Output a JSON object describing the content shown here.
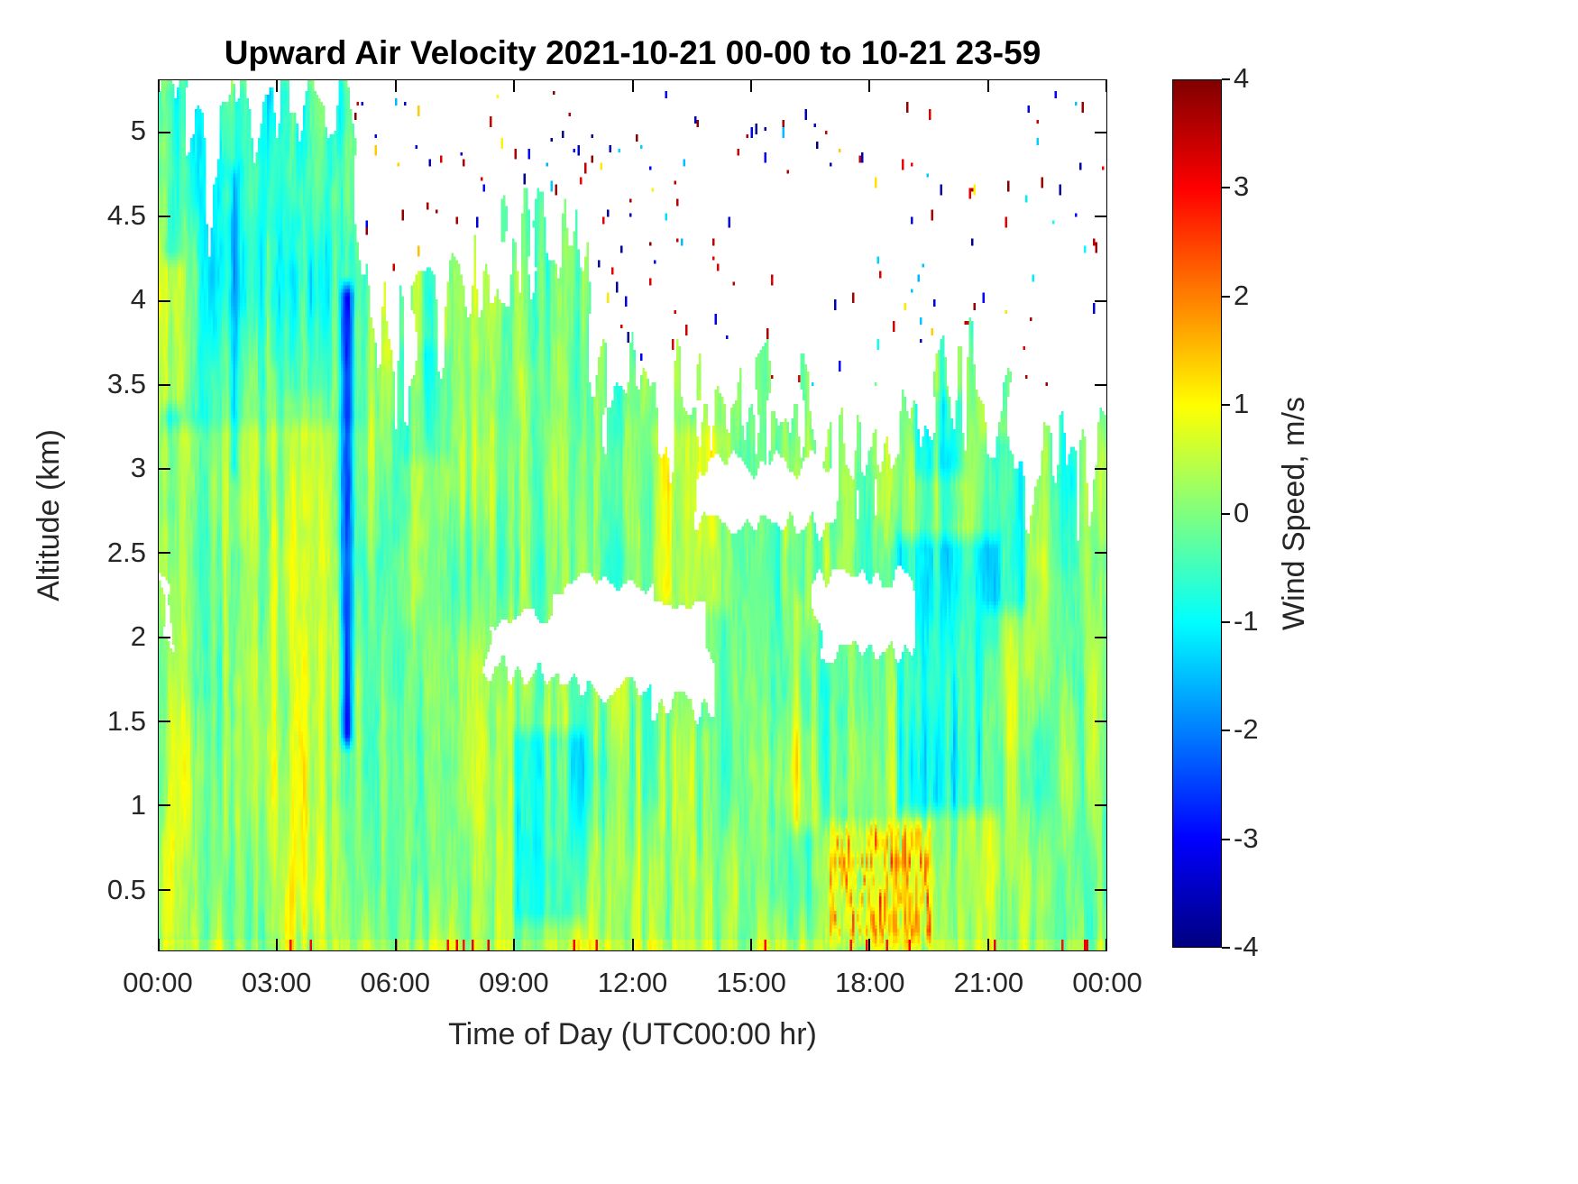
{
  "chart_data": {
    "type": "heatmap",
    "title": "Upward Air Velocity 2021-10-21 00-00 to 10-21 23-59",
    "xlabel": "Time of Day (UTC00:00 hr)",
    "ylabel": "Altitude (km)",
    "colorbar_label": "Wind Speed, m/s",
    "x_range_hours": [
      0,
      24
    ],
    "x_tick_hours": [
      0,
      3,
      6,
      9,
      12,
      15,
      18,
      21,
      24
    ],
    "x_tick_labels": [
      "00:00",
      "03:00",
      "06:00",
      "09:00",
      "12:00",
      "15:00",
      "18:00",
      "21:00",
      "00:00"
    ],
    "y_range_km": [
      0.14,
      5.31
    ],
    "y_tick_km": [
      0.5,
      1,
      1.5,
      2,
      2.5,
      3,
      3.5,
      4,
      4.5,
      5
    ],
    "y_tick_labels": [
      "0.5",
      "1",
      "1.5",
      "2",
      "2.5",
      "3",
      "3.5",
      "4",
      "4.5",
      "5"
    ],
    "value_range": [
      -4,
      4
    ],
    "colorbar_tick_values": [
      4,
      3,
      2,
      1,
      0,
      -1,
      -2,
      -3,
      -4
    ],
    "colorbar_tick_labels": [
      "4",
      "3",
      "2",
      "1",
      "0",
      "-1",
      "-2",
      "-3",
      "-4"
    ],
    "colormap": "jet",
    "colormap_stops": [
      [
        -4,
        0,
        0,
        128
      ],
      [
        -3,
        0,
        0,
        255
      ],
      [
        -1,
        0,
        255,
        255
      ],
      [
        1,
        255,
        255,
        0
      ],
      [
        3,
        255,
        0,
        0
      ],
      [
        4,
        128,
        0,
        0
      ]
    ],
    "no_data_color": "#ffffff",
    "field_summary": "Time-height curtain of vertical wind speed. Mostly weak velocities (-1 to +1 m/s, green/teal) below a ragged echo top that falls from ~5.3 km before 05:00 to ~3 km after noon; white = no data, including a mid-level gap near 2 km from ~08:30-14:00 and ~16:30-19:00; narrow deep-blue downdraft streak near 04:45; orange/red updraft bursts below 1 km near 17:00-19:30; isolated extreme-value speckles above the echo top.",
    "noise": {
      "seed": 7,
      "streak": {
        "fx": 6.5,
        "fz": 0.75,
        "amp": 1.35
      },
      "blob": {
        "fx": 1.3,
        "fz": 1.7,
        "amp": 0.7
      },
      "fine": {
        "fx": 34,
        "fz": 6.5,
        "amp": 0.5
      },
      "mean_offset": 0.13,
      "z_gradient": -0.05
    },
    "mask": {
      "cloud_top_profile": [
        [
          0,
          5.3
        ],
        [
          0.7,
          5.35
        ],
        [
          1.2,
          4.6
        ],
        [
          1.7,
          5.1
        ],
        [
          2.6,
          5.25
        ],
        [
          3.4,
          5.0
        ],
        [
          3.9,
          5.3
        ],
        [
          4.8,
          5.35
        ],
        [
          5.2,
          4.2
        ],
        [
          5.6,
          3.8
        ],
        [
          6.5,
          3.7
        ],
        [
          7.5,
          4.0
        ],
        [
          8.3,
          4.1
        ],
        [
          9.0,
          4.3
        ],
        [
          9.7,
          4.6
        ],
        [
          10.3,
          4.2
        ],
        [
          10.8,
          3.9
        ],
        [
          11.3,
          3.5
        ],
        [
          12.0,
          3.4
        ],
        [
          12.6,
          3.2
        ],
        [
          13.2,
          3.5
        ],
        [
          14.2,
          3.45
        ],
        [
          14.8,
          3.3
        ],
        [
          15.5,
          3.25
        ],
        [
          16.5,
          3.2
        ],
        [
          17.3,
          3.15
        ],
        [
          18.2,
          3.1
        ],
        [
          19.0,
          3.35
        ],
        [
          19.8,
          3.4
        ],
        [
          20.5,
          3.5
        ],
        [
          21.2,
          3.3
        ],
        [
          21.8,
          3.1
        ],
        [
          22.4,
          3.0
        ],
        [
          23.0,
          3.15
        ],
        [
          23.6,
          3.0
        ],
        [
          24,
          3.2
        ]
      ],
      "edge_raggedness_km": 0.55,
      "holes": [
        {
          "t0": 8.3,
          "t1": 10.4,
          "z0": 1.82,
          "z1": 2.12
        },
        {
          "t0": 10.2,
          "t1": 12.7,
          "z0": 1.7,
          "z1": 2.32
        },
        {
          "t0": 12.5,
          "t1": 14.0,
          "z0": 1.58,
          "z1": 2.2
        },
        {
          "t0": 16.55,
          "t1": 18.95,
          "z0": 1.92,
          "z1": 2.38
        },
        {
          "t0": 0.0,
          "t1": 0.4,
          "z0": 1.95,
          "z1": 2.32
        },
        {
          "t0": 13.8,
          "t1": 17.3,
          "z0": 2.68,
          "z1": 3.02
        }
      ]
    },
    "regions": [
      {
        "t0": 0.0,
        "t1": 0.7,
        "z0": 3.3,
        "z1": 4.3,
        "amp": 0.95,
        "note": "yellow updraft blob at start"
      },
      {
        "t0": 0.0,
        "t1": 5.3,
        "z0": 3.2,
        "z1": 5.35,
        "amp": -0.45,
        "note": "teal upper levels early morning"
      },
      {
        "t0": 1.75,
        "t1": 2.05,
        "z0": 2.9,
        "z1": 4.85,
        "amp": -1.3,
        "note": "narrow downdraft streak ~02:00"
      },
      {
        "t0": 4.55,
        "t1": 5.0,
        "z0": 1.3,
        "z1": 4.15,
        "amp": -2.6,
        "note": "deep blue downdraft streak ~04:45"
      },
      {
        "t0": 8.9,
        "t1": 10.9,
        "z0": 0.25,
        "z1": 1.5,
        "amp": -0.7,
        "note": "cyan low-level region ~10:00"
      },
      {
        "t0": 16.8,
        "t1": 19.7,
        "z0": 0.14,
        "z1": 0.95,
        "amp": 1.5,
        "speckle": true,
        "note": "orange-red updraft bursts late afternoon"
      },
      {
        "t0": 18.6,
        "t1": 21.4,
        "z0": 0.9,
        "z1": 2.65,
        "amp": -0.85,
        "note": "evening cyan downdrafts"
      },
      {
        "t0": 20.8,
        "t1": 22.1,
        "z0": 2.1,
        "z1": 3.25,
        "amp": -0.7,
        "note": "cyan patch ~21:00 aloft"
      },
      {
        "t0": 12.3,
        "t1": 14.6,
        "z0": 2.1,
        "z1": 3.3,
        "amp": 0.4,
        "note": "yellow-green streaks ~13:00"
      },
      {
        "t0": 0.0,
        "t1": 1.2,
        "z0": 0.14,
        "z1": 3.3,
        "amp": 0.35,
        "note": "yellow-green left edge"
      },
      {
        "t0": 2.5,
        "t1": 4.3,
        "z0": 0.14,
        "z1": 3.5,
        "amp": 0.3,
        "note": "yellow-green 03:00-04:00"
      },
      {
        "t0": 6.0,
        "t1": 7.5,
        "z0": 3.0,
        "z1": 3.8,
        "amp": -0.4,
        "note": "teal near top 06:00-07:30"
      },
      {
        "t0": 15.8,
        "t1": 16.8,
        "z0": 0.8,
        "z1": 2.3,
        "amp": 0.45,
        "note": "warm streaks ~16:30"
      },
      {
        "t0": 19.0,
        "t1": 20.6,
        "z0": 2.9,
        "z1": 3.5,
        "amp": -0.6,
        "note": "teal patches near top ~19:30"
      }
    ],
    "speckles": {
      "seed": 13,
      "count": 170,
      "note": "isolated extreme pixels above data top"
    },
    "bottom_row": {
      "z_max_km": 0.2,
      "base_amp": 0.25,
      "dot_threshold": 0.955,
      "dot_value": 2.8
    }
  }
}
